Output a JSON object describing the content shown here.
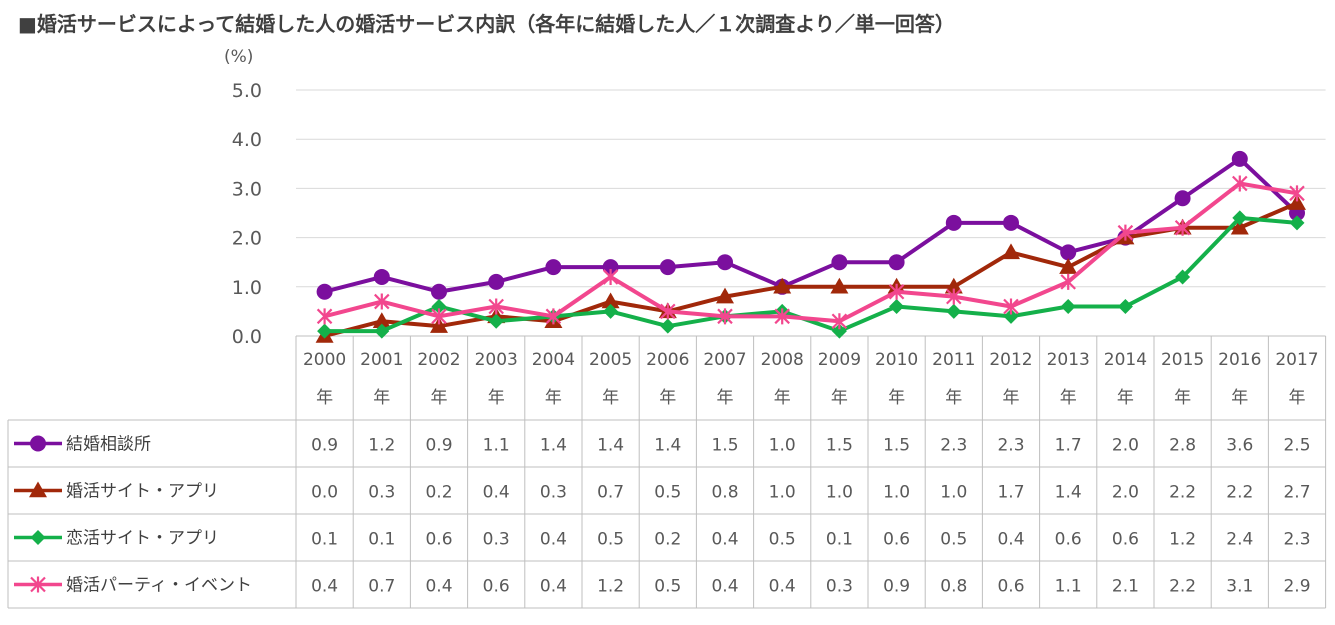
{
  "chart_data": {
    "type": "line",
    "title": "■婚活サービスによって結婚した人の婚活サービス内訳（各年に結婚した人／１次調査より／単一回答）",
    "y_unit": "(%)",
    "ylim": [
      0,
      5
    ],
    "y_ticks": [
      "0.0",
      "1.0",
      "2.0",
      "3.0",
      "4.0",
      "5.0"
    ],
    "grid": true,
    "legend": "data-table-left",
    "categories": [
      {
        "year": "2000",
        "suffix": "年"
      },
      {
        "year": "2001",
        "suffix": "年"
      },
      {
        "year": "2002",
        "suffix": "年"
      },
      {
        "year": "2003",
        "suffix": "年"
      },
      {
        "year": "2004",
        "suffix": "年"
      },
      {
        "year": "2005",
        "suffix": "年"
      },
      {
        "year": "2006",
        "suffix": "年"
      },
      {
        "year": "2007",
        "suffix": "年"
      },
      {
        "year": "2008",
        "suffix": "年"
      },
      {
        "year": "2009",
        "suffix": "年"
      },
      {
        "year": "2010",
        "suffix": "年"
      },
      {
        "year": "2011",
        "suffix": "年"
      },
      {
        "year": "2012",
        "suffix": "年"
      },
      {
        "year": "2013",
        "suffix": "年"
      },
      {
        "year": "2014",
        "suffix": "年"
      },
      {
        "year": "2015",
        "suffix": "年"
      },
      {
        "year": "2016",
        "suffix": "年"
      },
      {
        "year": "2017",
        "suffix": "年"
      }
    ],
    "series": [
      {
        "name": "結婚相談所",
        "color": "#7B0F9E",
        "marker": "circle",
        "values": [
          0.9,
          1.2,
          0.9,
          1.1,
          1.4,
          1.4,
          1.4,
          1.5,
          1.0,
          1.5,
          1.5,
          2.3,
          2.3,
          1.7,
          2.0,
          2.8,
          3.6,
          2.5
        ],
        "labels": [
          "0.9",
          "1.2",
          "0.9",
          "1.1",
          "1.4",
          "1.4",
          "1.4",
          "1.5",
          "1.0",
          "1.5",
          "1.5",
          "2.3",
          "2.3",
          "1.7",
          "2.0",
          "2.8",
          "3.6",
          "2.5"
        ]
      },
      {
        "name": "婚活サイト・アプリ",
        "color": "#A1280A",
        "marker": "triangle",
        "values": [
          0.0,
          0.3,
          0.2,
          0.4,
          0.3,
          0.7,
          0.5,
          0.8,
          1.0,
          1.0,
          1.0,
          1.0,
          1.7,
          1.4,
          2.0,
          2.2,
          2.2,
          2.7
        ],
        "labels": [
          "0.0",
          "0.3",
          "0.2",
          "0.4",
          "0.3",
          "0.7",
          "0.5",
          "0.8",
          "1.0",
          "1.0",
          "1.0",
          "1.0",
          "1.7",
          "1.4",
          "2.0",
          "2.2",
          "2.2",
          "2.7"
        ]
      },
      {
        "name": "恋活サイト・アプリ",
        "color": "#14B04A",
        "marker": "diamond",
        "values": [
          0.1,
          0.1,
          0.6,
          0.3,
          0.4,
          0.5,
          0.2,
          0.4,
          0.5,
          0.1,
          0.6,
          0.5,
          0.4,
          0.6,
          0.6,
          1.2,
          2.4,
          2.3
        ],
        "labels": [
          "0.1",
          "0.1",
          "0.6",
          "0.3",
          "0.4",
          "0.5",
          "0.2",
          "0.4",
          "0.5",
          "0.1",
          "0.6",
          "0.5",
          "0.4",
          "0.6",
          "0.6",
          "1.2",
          "2.4",
          "2.3"
        ]
      },
      {
        "name": "婚活パーティ・イベント",
        "color": "#F2478E",
        "marker": "asterisk",
        "values": [
          0.4,
          0.7,
          0.4,
          0.6,
          0.4,
          1.2,
          0.5,
          0.4,
          0.4,
          0.3,
          0.9,
          0.8,
          0.6,
          1.1,
          2.1,
          2.2,
          3.1,
          2.9
        ],
        "labels": [
          "0.4",
          "0.7",
          "0.4",
          "0.6",
          "0.4",
          "1.2",
          "0.5",
          "0.4",
          "0.4",
          "0.3",
          "0.9",
          "0.8",
          "0.6",
          "1.1",
          "2.1",
          "2.2",
          "3.1",
          "2.9"
        ]
      }
    ]
  }
}
